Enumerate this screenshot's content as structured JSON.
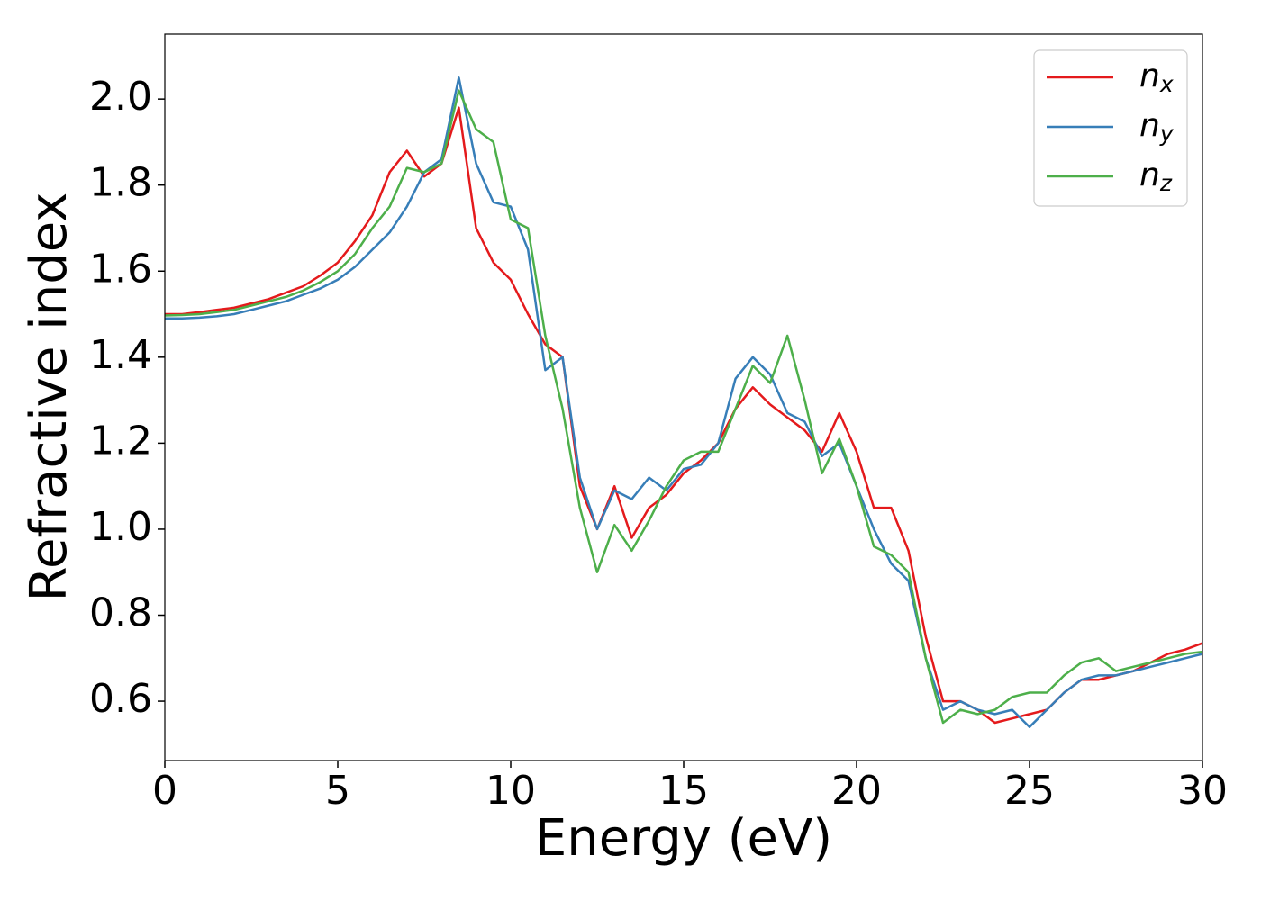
{
  "chart_data": {
    "type": "line",
    "xlabel": "Energy (eV)",
    "ylabel": "Refractive index",
    "x": [
      0,
      0.5,
      1,
      1.5,
      2,
      2.5,
      3,
      3.5,
      4,
      4.5,
      5,
      5.5,
      6,
      6.5,
      7,
      7.5,
      8,
      8.5,
      9,
      9.5,
      10,
      10.5,
      11,
      11.5,
      12,
      12.5,
      13,
      13.5,
      14,
      14.5,
      15,
      15.5,
      16,
      16.5,
      17,
      17.5,
      18,
      18.5,
      19,
      19.5,
      20,
      20.5,
      21,
      21.5,
      22,
      22.5,
      23,
      23.5,
      24,
      24.5,
      25,
      25.5,
      26,
      26.5,
      27,
      27.5,
      28,
      28.5,
      29,
      29.5,
      30
    ],
    "series": [
      {
        "name": "nx",
        "color": "#e41a1c",
        "values": [
          1.5,
          1.5,
          1.505,
          1.51,
          1.515,
          1.525,
          1.535,
          1.55,
          1.565,
          1.59,
          1.62,
          1.67,
          1.73,
          1.83,
          1.88,
          1.82,
          1.85,
          1.98,
          1.7,
          1.62,
          1.58,
          1.5,
          1.43,
          1.4,
          1.1,
          1.0,
          1.1,
          0.98,
          1.05,
          1.08,
          1.13,
          1.16,
          1.2,
          1.28,
          1.33,
          1.29,
          1.26,
          1.23,
          1.18,
          1.27,
          1.18,
          1.05,
          1.05,
          0.95,
          0.75,
          0.6,
          0.6,
          0.58,
          0.55,
          0.56,
          0.57,
          0.58,
          0.62,
          0.65,
          0.65,
          0.66,
          0.67,
          0.69,
          0.71,
          0.72,
          0.735
        ]
      },
      {
        "name": "ny",
        "color": "#377eb8",
        "values": [
          1.49,
          1.49,
          1.492,
          1.495,
          1.5,
          1.51,
          1.52,
          1.53,
          1.545,
          1.56,
          1.58,
          1.61,
          1.65,
          1.69,
          1.75,
          1.83,
          1.86,
          2.05,
          1.85,
          1.76,
          1.75,
          1.65,
          1.37,
          1.4,
          1.12,
          1.0,
          1.09,
          1.07,
          1.12,
          1.09,
          1.14,
          1.15,
          1.2,
          1.35,
          1.4,
          1.36,
          1.27,
          1.25,
          1.17,
          1.2,
          1.1,
          1.0,
          0.92,
          0.88,
          0.7,
          0.58,
          0.6,
          0.58,
          0.57,
          0.58,
          0.54,
          0.58,
          0.62,
          0.65,
          0.66,
          0.66,
          0.67,
          0.68,
          0.69,
          0.7,
          0.71
        ]
      },
      {
        "name": "nz",
        "color": "#4daf4a",
        "values": [
          1.497,
          1.498,
          1.5,
          1.505,
          1.51,
          1.52,
          1.53,
          1.54,
          1.555,
          1.575,
          1.6,
          1.64,
          1.7,
          1.75,
          1.84,
          1.83,
          1.85,
          2.02,
          1.93,
          1.9,
          1.72,
          1.7,
          1.45,
          1.28,
          1.05,
          0.9,
          1.01,
          0.95,
          1.02,
          1.1,
          1.16,
          1.18,
          1.18,
          1.28,
          1.38,
          1.34,
          1.45,
          1.3,
          1.13,
          1.21,
          1.1,
          0.96,
          0.94,
          0.9,
          0.7,
          0.55,
          0.58,
          0.57,
          0.58,
          0.61,
          0.62,
          0.62,
          0.66,
          0.69,
          0.7,
          0.67,
          0.68,
          0.69,
          0.7,
          0.71,
          0.715
        ]
      }
    ],
    "xlim": [
      0,
      30
    ],
    "xticks": [
      0,
      5,
      10,
      15,
      20,
      25,
      30
    ],
    "ylim": [
      0.462,
      2.151
    ],
    "yticks": [
      0.6,
      0.8,
      {
        "value": 1,
        "label": "1.0"
      },
      1.2,
      1.4,
      1.6,
      1.8,
      {
        "value": 2,
        "label": "2.0"
      }
    ],
    "grid": false,
    "legend": "upper right"
  }
}
